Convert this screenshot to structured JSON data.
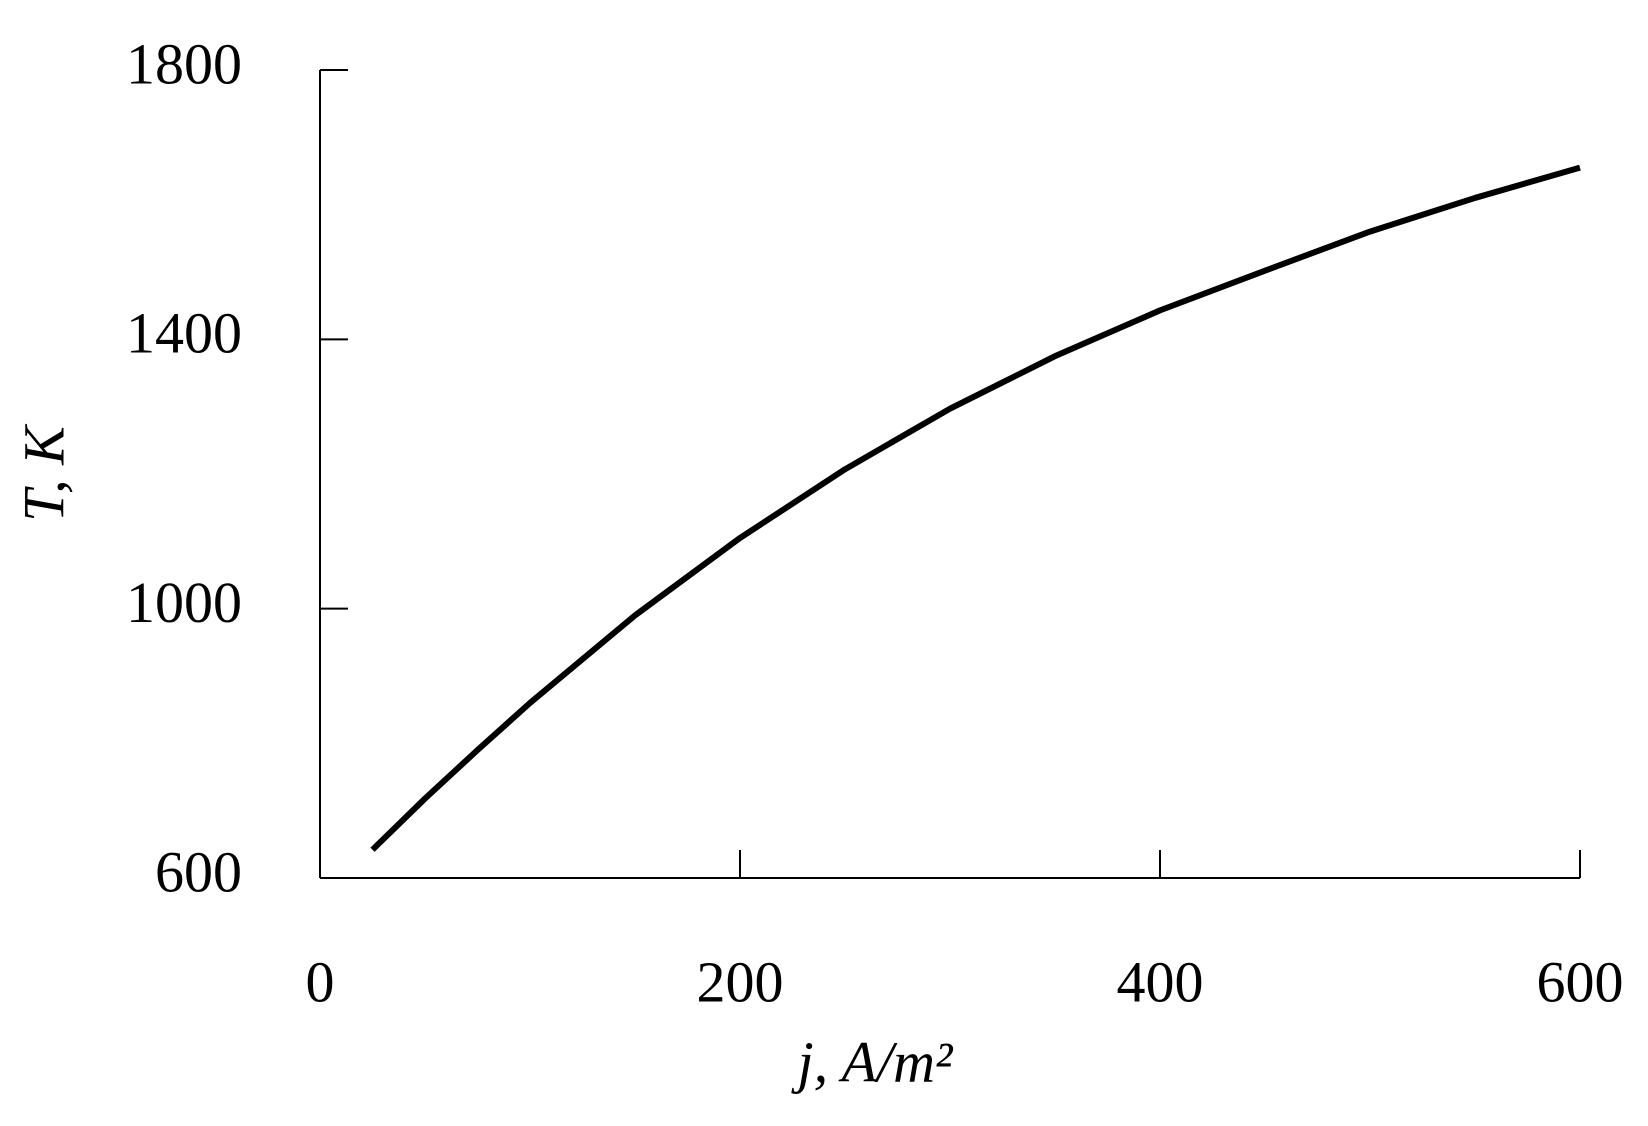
{
  "chart_data": {
    "type": "line",
    "xlabel": "j, A/m²",
    "ylabel": "T, K",
    "x": [
      25,
      50,
      75,
      100,
      150,
      200,
      250,
      300,
      350,
      400,
      450,
      500,
      550,
      600
    ],
    "series": [
      {
        "color": "#000000",
        "values": [
          642,
          718,
          790,
          860,
          990,
          1105,
          1207,
          1297,
          1375,
          1443,
          1502,
          1560,
          1610,
          1655
        ]
      }
    ],
    "xlim": [
      0,
      600
    ],
    "xticks": [
      0,
      200,
      400,
      600
    ],
    "ylim": [
      600,
      1800
    ],
    "yticks": [
      600,
      1000,
      1400,
      1800
    ]
  }
}
